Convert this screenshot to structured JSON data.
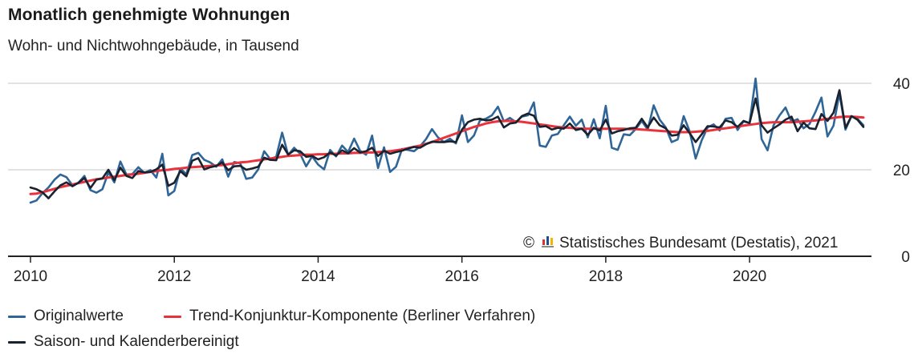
{
  "title": "Monatlich genehmigte Wohnungen",
  "subtitle": "Wohn- und Nichtwohngebäude, in Tausend",
  "source": "© Statistisches Bundesamt (Destatis), 2021",
  "colors": {
    "original": "#2f6697",
    "trend": "#e8323c",
    "seasonal": "#1a2230",
    "grid": "#d9d9d9",
    "axis": "#222222",
    "logo_bars": [
      "#e0302f",
      "#1f4f87",
      "#f2b400"
    ]
  },
  "legend": [
    {
      "label": "Originalwerte",
      "series": "original"
    },
    {
      "label": "Trend-Konjunktur-Komponente (Berliner Verfahren)",
      "series": "trend"
    },
    {
      "label": "Saison- und Kalenderbereinigt",
      "series": "seasonal"
    }
  ],
  "chart_data": {
    "type": "line",
    "title": "Monatlich genehmigte Wohnungen",
    "subtitle": "Wohn- und Nichtwohngebäude, in Tausend",
    "ylim": [
      0,
      40
    ],
    "yticks": [
      0,
      20,
      40
    ],
    "xticks": [
      "2010",
      "2012",
      "2014",
      "2016",
      "2018",
      "2020"
    ],
    "x_start": "2010-01",
    "x_end": "2021-06",
    "grid": true,
    "legend_position": "bottom",
    "series": [
      {
        "name": "Originalwerte",
        "key": "original",
        "values": [
          12.4,
          12.9,
          14.6,
          15.9,
          17.7,
          18.9,
          18.3,
          16.4,
          17.0,
          18.6,
          15.3,
          14.7,
          15.5,
          19.4,
          17.1,
          21.9,
          18.9,
          19.0,
          20.6,
          19.3,
          19.9,
          18.2,
          23.7,
          14.1,
          15.1,
          20.3,
          19.0,
          23.4,
          23.9,
          22.3,
          21.7,
          20.7,
          22.4,
          18.4,
          21.8,
          21.5,
          17.9,
          18.2,
          20.1,
          24.3,
          22.5,
          23.0,
          28.6,
          23.4,
          25.1,
          23.7,
          20.8,
          23.1,
          21.2,
          20.1,
          24.6,
          23.1,
          25.6,
          24.1,
          27.2,
          24.4,
          23.5,
          27.9,
          20.4,
          25.2,
          19.5,
          20.7,
          24.8,
          24.6,
          24.3,
          25.4,
          27.1,
          29.4,
          27.5,
          26.4,
          27.2,
          26.1,
          32.6,
          26.4,
          27.9,
          31.4,
          31.8,
          32.6,
          34.6,
          31.2,
          32.0,
          31.0,
          32.3,
          32.6,
          35.6,
          25.6,
          25.3,
          27.9,
          28.3,
          30.3,
          32.3,
          30.2,
          31.6,
          27.5,
          31.7,
          27.3,
          34.8,
          25.1,
          24.6,
          28.2,
          28.0,
          29.4,
          31.3,
          29.3,
          34.9,
          31.6,
          29.8,
          26.4,
          27.0,
          32.4,
          28.9,
          22.6,
          26.8,
          29.8,
          30.5,
          29.1,
          31.8,
          32.0,
          29.2,
          31.2,
          30.8,
          41.1,
          27.1,
          24.5,
          30.3,
          32.6,
          34.4,
          31.1,
          31.7,
          29.6,
          30.6,
          33.4,
          36.7,
          27.7,
          30.2,
          37.7,
          29.3,
          32.4,
          31.8,
          30.3
        ],
        "value_precision": "approx"
      },
      {
        "name": "Trend-Konjunktur-Komponente (Berliner Verfahren)",
        "key": "trend",
        "values": [
          14.4,
          14.5,
          14.8,
          15.2,
          15.6,
          16.0,
          16.3,
          16.6,
          16.9,
          17.2,
          17.5,
          17.8,
          18.0,
          18.2,
          18.4,
          18.6,
          18.8,
          18.9,
          19.1,
          19.3,
          19.5,
          19.7,
          19.9,
          20.0,
          20.2,
          20.3,
          20.5,
          20.6,
          20.7,
          20.8,
          20.9,
          21.0,
          21.1,
          21.3,
          21.5,
          21.7,
          21.8,
          22.0,
          22.2,
          22.4,
          22.6,
          22.8,
          23.0,
          23.2,
          23.3,
          23.4,
          23.5,
          23.5,
          23.6,
          23.6,
          23.7,
          23.7,
          23.8,
          23.8,
          23.9,
          23.9,
          24.0,
          24.0,
          24.1,
          24.2,
          24.3,
          24.5,
          24.7,
          25.0,
          25.3,
          25.6,
          26.0,
          26.4,
          26.9,
          27.4,
          27.9,
          28.4,
          28.9,
          29.4,
          29.9,
          30.3,
          30.7,
          31.0,
          31.2,
          31.3,
          31.3,
          31.2,
          31.1,
          30.9,
          30.7,
          30.5,
          30.3,
          30.1,
          29.9,
          29.8,
          29.7,
          29.6,
          29.5,
          29.5,
          29.5,
          29.5,
          29.5,
          29.5,
          29.5,
          29.5,
          29.4,
          29.4,
          29.3,
          29.2,
          29.1,
          29.0,
          28.9,
          28.8,
          28.7,
          28.7,
          28.7,
          28.8,
          28.9,
          29.0,
          29.2,
          29.4,
          29.6,
          29.8,
          30.0,
          30.2,
          30.4,
          30.6,
          30.8,
          30.9,
          31.0,
          31.0,
          31.0,
          31.0,
          31.1,
          31.2,
          31.3,
          31.4,
          31.6,
          31.8,
          32.0,
          32.2,
          32.3,
          32.3,
          32.2,
          32.1
        ],
        "value_precision": "approx"
      },
      {
        "name": "Saison- und Kalenderbereinigt",
        "key": "seasonal",
        "values": [
          15.9,
          15.5,
          14.8,
          13.4,
          15.0,
          16.4,
          17.1,
          16.2,
          17.0,
          18.1,
          15.8,
          17.7,
          18.0,
          20.0,
          17.6,
          20.5,
          18.6,
          18.1,
          19.7,
          19.4,
          19.5,
          20.1,
          21.2,
          16.3,
          17.0,
          19.7,
          18.5,
          22.1,
          22.7,
          20.1,
          20.6,
          20.9,
          21.7,
          19.9,
          20.8,
          20.9,
          20.0,
          20.3,
          20.7,
          22.8,
          22.3,
          22.2,
          25.8,
          23.5,
          24.5,
          24.3,
          23.0,
          23.2,
          22.4,
          22.9,
          24.0,
          23.3,
          24.5,
          23.8,
          25.0,
          24.0,
          24.3,
          25.1,
          23.2,
          24.4,
          23.7,
          24.1,
          24.4,
          24.9,
          25.3,
          25.1,
          25.9,
          26.5,
          26.4,
          26.4,
          26.6,
          26.4,
          29.3,
          31.0,
          31.6,
          31.8,
          31.4,
          31.6,
          32.3,
          29.8,
          30.7,
          30.9,
          32.4,
          33.0,
          32.5,
          29.9,
          30.1,
          29.3,
          29.7,
          29.5,
          30.7,
          29.2,
          29.5,
          28.1,
          29.7,
          29.1,
          31.6,
          28.4,
          28.9,
          29.2,
          29.6,
          29.7,
          31.8,
          29.8,
          32.1,
          30.3,
          29.6,
          27.9,
          28.1,
          30.3,
          28.5,
          26.4,
          28.2,
          30.1,
          30.0,
          29.8,
          31.4,
          31.0,
          29.9,
          31.3,
          30.8,
          36.5,
          30.3,
          28.6,
          29.6,
          30.5,
          31.6,
          32.3,
          28.9,
          30.9,
          29.6,
          29.4,
          32.9,
          31.3,
          33.2,
          38.4,
          29.7,
          32.4,
          31.6,
          29.9
        ],
        "value_precision": "approx"
      }
    ]
  }
}
